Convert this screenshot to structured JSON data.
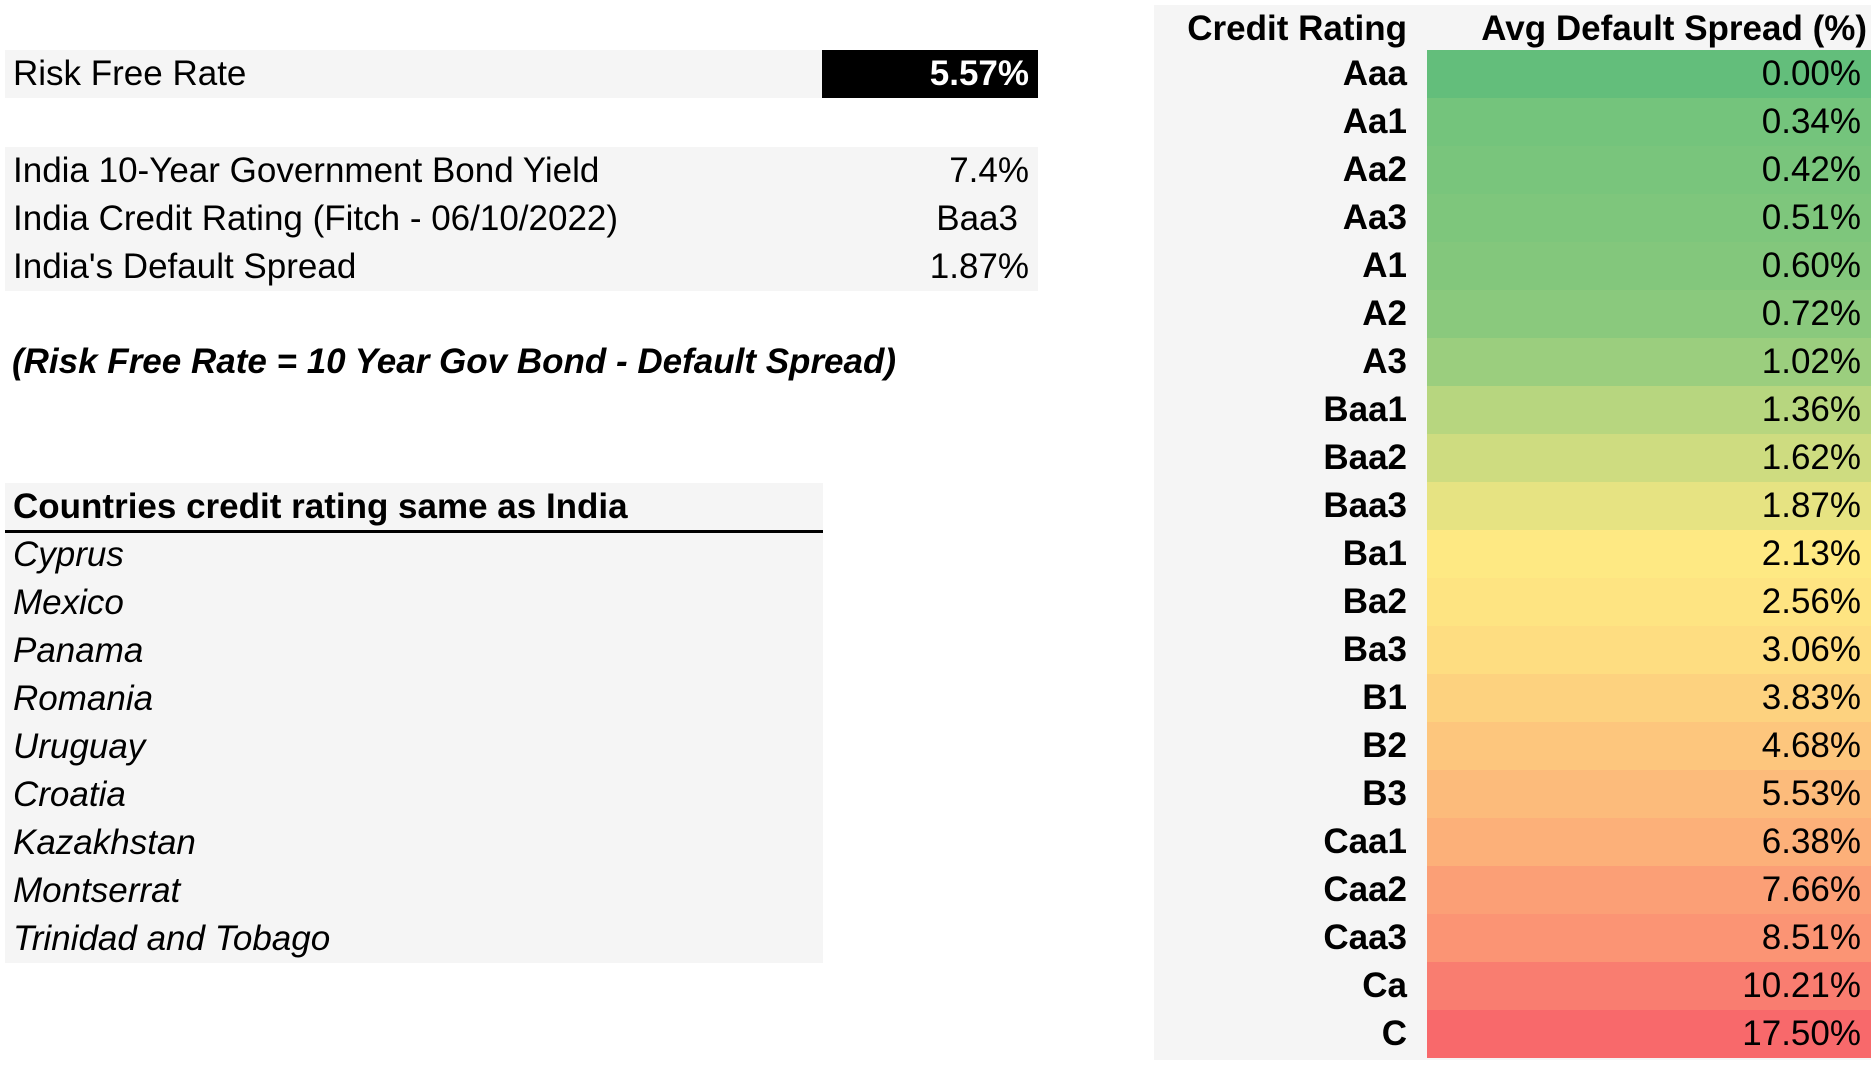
{
  "risk_free": {
    "label": "Risk Free Rate",
    "value": "5.57%"
  },
  "inputs": [
    {
      "label": "India 10-Year Government Bond Yield",
      "value": "7.4%"
    },
    {
      "label": "India Credit Rating (Fitch - 06/10/2022)",
      "value": "Baa3"
    },
    {
      "label": "India's Default Spread",
      "value": "1.87%"
    }
  ],
  "formula": "(Risk Free Rate = 10 Year Gov Bond - Default Spread)",
  "countries": {
    "header": "Countries credit rating same as India",
    "items": [
      "Cyprus",
      "Mexico",
      "Panama",
      "Romania",
      "Uruguay",
      "Croatia",
      "Kazakhstan",
      "Montserrat",
      "Trinidad and Tobago"
    ]
  },
  "spread_table": {
    "headers": [
      "Credit Rating",
      "Avg Default Spread (%)"
    ],
    "rows": [
      {
        "rating": "Aaa",
        "spread": "0.00%",
        "color": "#63be7b"
      },
      {
        "rating": "Aa1",
        "spread": "0.34%",
        "color": "#74c47c"
      },
      {
        "rating": "Aa2",
        "spread": "0.42%",
        "color": "#79c57c"
      },
      {
        "rating": "Aa3",
        "spread": "0.51%",
        "color": "#7ec67c"
      },
      {
        "rating": "A1",
        "spread": "0.60%",
        "color": "#83c77c"
      },
      {
        "rating": "A2",
        "spread": "0.72%",
        "color": "#8ac97d"
      },
      {
        "rating": "A3",
        "spread": "1.02%",
        "color": "#9bce7e"
      },
      {
        "rating": "Baa1",
        "spread": "1.36%",
        "color": "#b7d67f"
      },
      {
        "rating": "Baa2",
        "spread": "1.62%",
        "color": "#cedc80"
      },
      {
        "rating": "Baa3",
        "spread": "1.87%",
        "color": "#e6e382"
      },
      {
        "rating": "Ba1",
        "spread": "2.13%",
        "color": "#fee983"
      },
      {
        "rating": "Ba2",
        "spread": "2.56%",
        "color": "#fee482"
      },
      {
        "rating": "Ba3",
        "spread": "3.06%",
        "color": "#fedd81"
      },
      {
        "rating": "B1",
        "spread": "3.83%",
        "color": "#fdd27f"
      },
      {
        "rating": "B2",
        "spread": "4.68%",
        "color": "#fdc67d"
      },
      {
        "rating": "B3",
        "spread": "5.53%",
        "color": "#fcbb7b"
      },
      {
        "rating": "Caa1",
        "spread": "6.38%",
        "color": "#fcb079"
      },
      {
        "rating": "Caa2",
        "spread": "7.66%",
        "color": "#fb9f76"
      },
      {
        "rating": "Caa3",
        "spread": "8.51%",
        "color": "#fb9474"
      },
      {
        "rating": "Ca",
        "spread": "10.21%",
        "color": "#f97d70"
      },
      {
        "rating": "C",
        "spread": "17.50%",
        "color": "#f8696b"
      }
    ]
  }
}
